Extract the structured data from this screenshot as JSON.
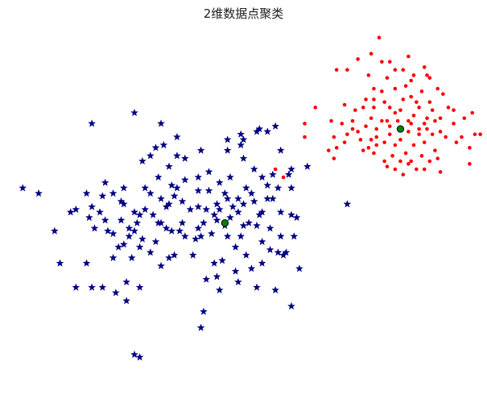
{
  "chart_data": {
    "type": "scatter",
    "title": "2维数据点聚类",
    "axes_visible": false,
    "xlim": [
      -0.5,
      8.2
    ],
    "ylim": [
      -0.5,
      6.4
    ],
    "series": [
      {
        "marker": "star",
        "color": "#000080",
        "points": [
          [
            0.7,
            3.1
          ],
          [
            1.0,
            3.15
          ],
          [
            1.5,
            2.4
          ],
          [
            1.2,
            3.35
          ],
          [
            1.4,
            3.4
          ],
          [
            1.8,
            2.7
          ],
          [
            1.6,
            3.2
          ],
          [
            2.0,
            3.5
          ],
          [
            1.9,
            3.0
          ],
          [
            1.3,
            2.7
          ],
          [
            1.6,
            3.5
          ],
          [
            1.8,
            3.05
          ],
          [
            1.9,
            2.4
          ],
          [
            2.1,
            2.3
          ],
          [
            1.7,
            2.6
          ],
          [
            2.3,
            3.3
          ],
          [
            2.1,
            4.1
          ],
          [
            2.5,
            3.55
          ],
          [
            2.4,
            2.75
          ],
          [
            2.6,
            3.5
          ],
          [
            2.55,
            3.35
          ],
          [
            2.7,
            2.85
          ],
          [
            2.45,
            3.9
          ],
          [
            2.3,
            2.85
          ],
          [
            2.5,
            2.7
          ],
          [
            2.2,
            2.5
          ],
          [
            2.55,
            2.25
          ],
          [
            2.9,
            2.25
          ],
          [
            3.0,
            3.15
          ],
          [
            3.1,
            2.85
          ],
          [
            3.0,
            3.45
          ],
          [
            2.75,
            3.65
          ],
          [
            2.6,
            4.1
          ],
          [
            2.25,
            3.7
          ],
          [
            2.35,
            4.3
          ],
          [
            2.45,
            3.2
          ],
          [
            2.65,
            2.7
          ],
          [
            2.75,
            2.6
          ],
          [
            2.95,
            2.55
          ],
          [
            3.2,
            3.8
          ],
          [
            3.35,
            3.2
          ],
          [
            3.4,
            3.6
          ],
          [
            3.55,
            4.4
          ],
          [
            3.55,
            4.2
          ],
          [
            3.8,
            4.5
          ],
          [
            3.5,
            2.8
          ],
          [
            3.4,
            3.1
          ],
          [
            3.25,
            2.65
          ],
          [
            3.3,
            3.0
          ],
          [
            3.05,
            2.6
          ],
          [
            3.35,
            2.9
          ],
          [
            3.45,
            2.15
          ],
          [
            3.15,
            1.8
          ],
          [
            3.3,
            2.1
          ],
          [
            3.55,
            2.6
          ],
          [
            3.7,
            2.4
          ],
          [
            3.75,
            3.3
          ],
          [
            3.6,
            2.95
          ],
          [
            3.55,
            3.3
          ],
          [
            3.85,
            3.2
          ],
          [
            3.9,
            3.5
          ],
          [
            3.95,
            2.85
          ],
          [
            3.75,
            3.05
          ],
          [
            3.8,
            2.6
          ],
          [
            3.65,
            3.15
          ],
          [
            3.5,
            3.4
          ],
          [
            3.6,
            3.7
          ],
          [
            3.8,
            4.3
          ],
          [
            3.85,
            4.4
          ],
          [
            4.1,
            4.55
          ],
          [
            4.05,
            3.85
          ],
          [
            4.15,
            3.0
          ],
          [
            4.0,
            3.4
          ],
          [
            4.3,
            3.3
          ],
          [
            4.1,
            2.8
          ],
          [
            4.2,
            2.5
          ],
          [
            4.35,
            2.35
          ],
          [
            4.2,
            2.1
          ],
          [
            3.9,
            2.25
          ],
          [
            3.7,
            1.95
          ],
          [
            4.15,
            4.6
          ],
          [
            4.4,
            3.75
          ],
          [
            4.55,
            4.2
          ],
          [
            4.7,
            3.75
          ],
          [
            4.75,
            3.5
          ],
          [
            4.5,
            3.5
          ],
          [
            4.55,
            2.6
          ],
          [
            4.8,
            2.6
          ],
          [
            4.65,
            2.3
          ],
          [
            4.9,
            2.0
          ],
          [
            4.5,
            2.3
          ],
          [
            4.75,
            3.0
          ],
          [
            4.85,
            2.95
          ],
          [
            4.2,
            3.7
          ],
          [
            4.3,
            3.55
          ],
          [
            3.15,
            3.1
          ],
          [
            3.0,
            2.75
          ],
          [
            2.85,
            3.1
          ],
          [
            2.7,
            3.25
          ],
          [
            2.15,
            3.0
          ],
          [
            2.4,
            3.15
          ],
          [
            5.05,
            3.9
          ],
          [
            4.05,
            3.25
          ],
          [
            4.3,
            4.55
          ],
          [
            4.45,
            4.65
          ],
          [
            2.3,
            4.7
          ],
          [
            2.2,
            4.25
          ],
          [
            2.6,
            4.45
          ],
          [
            2.75,
            4.05
          ],
          [
            3.05,
            4.2
          ],
          [
            3.0,
            3.7
          ],
          [
            2.1,
            3.4
          ],
          [
            1.25,
            3.6
          ],
          [
            2.0,
            3.1
          ],
          [
            -0.3,
            3.5
          ],
          [
            0.0,
            3.4
          ],
          [
            0.3,
            2.7
          ],
          [
            0.6,
            3.05
          ],
          [
            0.9,
            3.4
          ],
          [
            0.95,
            2.95
          ],
          [
            1.05,
            2.75
          ],
          [
            1.25,
            2.9
          ],
          [
            1.4,
            2.2
          ],
          [
            1.15,
            3.05
          ],
          [
            1.75,
            2.2
          ],
          [
            1.6,
            2.45
          ],
          [
            1.7,
            2.75
          ],
          [
            1.85,
            2.85
          ],
          [
            1.95,
            2.55
          ],
          [
            2.25,
            2.85
          ],
          [
            1.55,
            2.9
          ],
          [
            0.9,
            2.1
          ],
          [
            1.2,
            1.65
          ],
          [
            1.45,
            1.55
          ],
          [
            1.65,
            1.4
          ],
          [
            1.9,
            1.65
          ],
          [
            1.65,
            1.75
          ],
          [
            2.3,
            2.05
          ],
          [
            2.45,
            2.2
          ],
          [
            3.4,
            1.6
          ],
          [
            3.35,
            1.85
          ],
          [
            3.2,
            3.45
          ],
          [
            4.0,
            2.0
          ],
          [
            3.85,
            2.8
          ],
          [
            4.35,
            2.75
          ],
          [
            1.4,
            2.65
          ],
          [
            1.8,
            4.9
          ],
          [
            1.95,
            4.0
          ],
          [
            3.85,
            4.05
          ],
          [
            4.2,
            3.05
          ],
          [
            4.4,
            3.3
          ],
          [
            4.55,
            3.05
          ],
          [
            4.75,
            3.85
          ],
          [
            0.7,
            1.65
          ],
          [
            1.0,
            1.65
          ],
          [
            1.55,
            3.25
          ],
          [
            1.0,
            4.7
          ],
          [
            0.4,
            2.1
          ],
          [
            1.8,
            0.4
          ],
          [
            1.9,
            0.35
          ],
          [
            3.05,
            0.9
          ],
          [
            3.1,
            1.2
          ],
          [
            4.45,
            1.6
          ],
          [
            4.6,
            2.25
          ],
          [
            3.75,
            1.75
          ],
          [
            4.1,
            1.65
          ],
          [
            5.8,
            3.2
          ],
          [
            4.75,
            1.3
          ]
        ]
      },
      {
        "marker": "dot",
        "color": "#ff0000",
        "points": [
          [
            6.0,
            5.9
          ],
          [
            6.2,
            5.6
          ],
          [
            5.6,
            5.7
          ],
          [
            5.8,
            5.7
          ],
          [
            6.3,
            5.35
          ],
          [
            6.1,
            5.0
          ],
          [
            6.45,
            5.3
          ],
          [
            6.5,
            5.1
          ],
          [
            6.3,
            5.0
          ],
          [
            6.6,
            5.0
          ],
          [
            6.7,
            4.9
          ],
          [
            6.9,
            5.4
          ],
          [
            6.7,
            5.7
          ],
          [
            6.85,
            5.7
          ],
          [
            7.0,
            5.5
          ],
          [
            7.2,
            5.3
          ],
          [
            7.3,
            5.6
          ],
          [
            7.15,
            5.0
          ],
          [
            7.4,
            4.95
          ],
          [
            7.35,
            5.1
          ],
          [
            7.6,
            5.25
          ],
          [
            7.7,
            5.0
          ],
          [
            7.55,
            4.8
          ],
          [
            7.8,
            4.7
          ],
          [
            7.3,
            4.6
          ],
          [
            7.15,
            4.5
          ],
          [
            6.95,
            4.55
          ],
          [
            7.05,
            4.3
          ],
          [
            7.2,
            4.1
          ],
          [
            6.8,
            4.4
          ],
          [
            6.9,
            4.15
          ],
          [
            6.7,
            4.3
          ],
          [
            6.6,
            4.5
          ],
          [
            6.5,
            4.35
          ],
          [
            6.35,
            4.45
          ],
          [
            6.2,
            4.25
          ],
          [
            6.05,
            4.4
          ],
          [
            5.8,
            4.5
          ],
          [
            5.7,
            4.7
          ],
          [
            5.75,
            4.35
          ],
          [
            5.5,
            4.75
          ],
          [
            5.6,
            4.25
          ],
          [
            5.9,
            4.75
          ],
          [
            6.0,
            4.55
          ],
          [
            6.15,
            4.65
          ],
          [
            5.95,
            4.95
          ],
          [
            6.45,
            4.75
          ],
          [
            6.6,
            4.65
          ],
          [
            6.75,
            4.75
          ],
          [
            7.0,
            4.7
          ],
          [
            7.05,
            4.85
          ],
          [
            6.8,
            4.95
          ],
          [
            6.85,
            5.15
          ],
          [
            6.45,
            5.85
          ],
          [
            6.55,
            5.55
          ],
          [
            6.95,
            5.95
          ],
          [
            6.25,
            4.8
          ],
          [
            6.1,
            4.2
          ],
          [
            6.3,
            4.15
          ],
          [
            6.5,
            4.0
          ],
          [
            6.35,
            4.6
          ],
          [
            6.55,
            4.75
          ],
          [
            6.65,
            4.1
          ],
          [
            6.8,
            4.0
          ],
          [
            6.95,
            3.95
          ],
          [
            7.1,
            3.85
          ],
          [
            7.25,
            4.35
          ],
          [
            7.4,
            4.5
          ],
          [
            7.45,
            4.2
          ],
          [
            7.5,
            4.05
          ],
          [
            7.35,
            4.0
          ],
          [
            7.25,
            3.85
          ],
          [
            7.0,
            4.0
          ],
          [
            6.85,
            3.75
          ],
          [
            6.7,
            3.85
          ],
          [
            6.55,
            3.9
          ],
          [
            7.1,
            5.1
          ],
          [
            7.25,
            4.7
          ],
          [
            7.45,
            4.75
          ],
          [
            7.0,
            5.2
          ],
          [
            7.05,
            5.6
          ],
          [
            6.7,
            5.35
          ],
          [
            6.6,
            5.85
          ],
          [
            6.25,
            6.0
          ],
          [
            6.4,
            6.3
          ],
          [
            7.25,
            5.75
          ],
          [
            7.5,
            5.35
          ],
          [
            7.65,
            4.45
          ],
          [
            8.1,
            4.25
          ],
          [
            8.2,
            4.5
          ],
          [
            7.95,
            4.45
          ],
          [
            8.0,
            4.8
          ],
          [
            8.15,
            4.9
          ],
          [
            7.8,
            4.95
          ],
          [
            8.3,
            4.5
          ],
          [
            8.1,
            3.95
          ],
          [
            7.3,
            4.8
          ],
          [
            7.35,
            5.55
          ],
          [
            6.15,
            5.15
          ],
          [
            6.3,
            5.15
          ],
          [
            5.75,
            5.05
          ],
          [
            5.9,
            4.6
          ],
          [
            5.55,
            4.45
          ],
          [
            5.45,
            4.2
          ],
          [
            5.0,
            4.45
          ],
          [
            4.45,
            3.85
          ],
          [
            4.6,
            3.7
          ],
          [
            5.0,
            4.7
          ],
          [
            5.2,
            5.0
          ],
          [
            5.55,
            4.05
          ],
          [
            6.35,
            4.3
          ],
          [
            6.25,
            4.4
          ],
          [
            6.95,
            4.75
          ],
          [
            7.15,
            4.6
          ],
          [
            7.55,
            4.55
          ],
          [
            7.85,
            4.35
          ],
          [
            7.55,
            3.8
          ]
        ]
      },
      {
        "marker": "centroid",
        "color": "#008000",
        "points": [
          [
            3.5,
            2.85
          ],
          [
            6.8,
            4.6
          ]
        ]
      }
    ]
  }
}
